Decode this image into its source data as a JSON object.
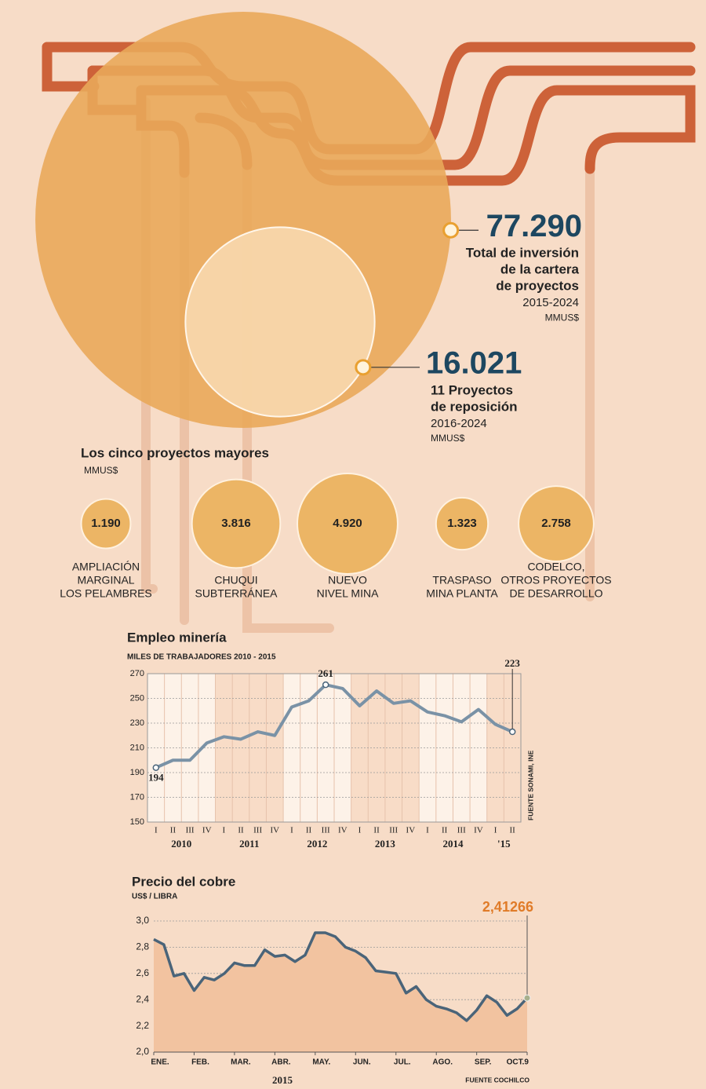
{
  "chart_data": [
    {
      "type": "bubble",
      "categories": [
        [
          "Total de inversión",
          "de la cartera",
          "de proyectos"
        ],
        [
          "11 Proyectos",
          "de reposición"
        ]
      ],
      "periods": [
        "2015-2024",
        "2016-2024"
      ],
      "unit": "MMUS$",
      "values": [
        77290,
        16021
      ],
      "value_labels": [
        "77.290",
        "16.021"
      ],
      "colors": [
        "#e9a85a",
        "#f9dab3"
      ]
    },
    {
      "type": "bubble",
      "title": "Los cinco proyectos mayores",
      "subtitle": "MMUS$",
      "categories": [
        [
          "AMPLIACIÓN",
          "MARGINAL",
          "LOS PELAMBRES"
        ],
        [
          "CHUQUI",
          "SUBTERRÁNEA"
        ],
        [
          "NUEVO",
          "NIVEL MINA"
        ],
        [
          "TRASPASO",
          "MINA PLANTA"
        ],
        [
          "CODELCO,",
          "OTROS PROYECTOS",
          "DE DESARROLLO"
        ]
      ],
      "values": [
        1190,
        3816,
        4920,
        1323,
        2758
      ],
      "value_labels": [
        "1.190",
        "3.816",
        "4.920",
        "1.323",
        "2.758"
      ],
      "color": "#ecb565"
    },
    {
      "type": "line",
      "title": "Empleo minería",
      "subtitle": "MILES DE TRABAJADORES 2010 - 2015",
      "categories": [
        "I",
        "II",
        "III",
        "IV",
        "I",
        "II",
        "III",
        "IV",
        "I",
        "II",
        "III",
        "IV",
        "I",
        "II",
        "III",
        "IV",
        "I",
        "II",
        "III",
        "IV",
        "I",
        "II"
      ],
      "years": [
        "2010",
        "2011",
        "2012",
        "2013",
        "2014",
        "'15"
      ],
      "values": [
        194,
        200,
        200,
        214,
        219,
        217,
        223,
        220,
        243,
        248,
        261,
        258,
        244,
        256,
        246,
        248,
        239,
        236,
        231,
        241,
        229,
        223
      ],
      "value_labels": [
        "194",
        null,
        null,
        null,
        null,
        null,
        null,
        null,
        null,
        null,
        "261",
        null,
        null,
        null,
        null,
        null,
        null,
        null,
        null,
        null,
        null,
        "223"
      ],
      "ylim": [
        150,
        270
      ],
      "yticks": [
        150,
        170,
        190,
        210,
        230,
        250,
        270
      ],
      "grid": true,
      "color": "#7a92a6",
      "source": "FUENTE SONAMI, INE"
    },
    {
      "type": "area",
      "title": "Precio del cobre",
      "subtitle": "US$ / LIBRA",
      "categories": [
        "ENE.",
        null,
        null,
        null,
        "FEB.",
        null,
        null,
        null,
        "MAR.",
        null,
        null,
        null,
        "ABR.",
        null,
        null,
        null,
        "MAY.",
        null,
        null,
        null,
        "JUN.",
        null,
        null,
        null,
        "JUL.",
        null,
        null,
        null,
        "AGO.",
        null,
        null,
        null,
        "SEP.",
        null,
        null,
        null,
        null,
        "OCT.9"
      ],
      "year": "2015",
      "values": [
        2.86,
        2.82,
        2.58,
        2.6,
        2.47,
        2.57,
        2.55,
        2.6,
        2.68,
        2.66,
        2.66,
        2.78,
        2.73,
        2.74,
        2.69,
        2.74,
        2.91,
        2.91,
        2.88,
        2.8,
        2.77,
        2.72,
        2.62,
        2.61,
        2.6,
        2.45,
        2.5,
        2.4,
        2.35,
        2.33,
        2.3,
        2.24,
        2.32,
        2.43,
        2.38,
        2.28,
        2.33,
        2.41266
      ],
      "value_labels": [
        null,
        null,
        null,
        null,
        null,
        null,
        null,
        null,
        null,
        null,
        null,
        null,
        null,
        null,
        null,
        null,
        null,
        null,
        null,
        null,
        null,
        null,
        null,
        null,
        null,
        null,
        null,
        null,
        null,
        null,
        null,
        null,
        null,
        null,
        null,
        null,
        null,
        "2,41266"
      ],
      "ylim": [
        2,
        3
      ],
      "yticks": [
        {
          "value": 2,
          "label": "2,0"
        },
        {
          "value": 2.2,
          "label": "2,2"
        },
        {
          "value": 2.4,
          "label": "2,4"
        },
        {
          "value": 2.6,
          "label": "2,6"
        },
        {
          "value": 2.8,
          "label": "2,8"
        },
        {
          "value": 3,
          "label": "3,0"
        }
      ],
      "grid": true,
      "color": "#4a6479",
      "fill": "#f2c3a0",
      "highlight": "#e07b28",
      "source": "FUENTE COCHILCO"
    }
  ]
}
